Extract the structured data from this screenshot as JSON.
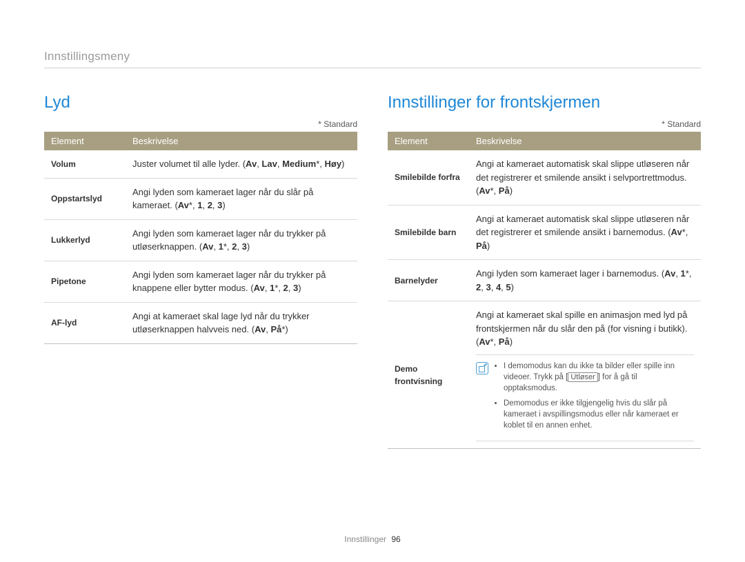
{
  "breadcrumb": "Innstillingsmeny",
  "standard_note": "* Standard",
  "table_headers": {
    "element": "Element",
    "description": "Beskrivelse"
  },
  "footer": {
    "section": "Innstillinger",
    "page": "96"
  },
  "colors": {
    "accent": "#1e87d6",
    "header_bg": "#a89f82",
    "header_text": "#ffffff",
    "breadcrumb_text": "#9a9a9a",
    "border": "#d9d9d9",
    "note_border": "#4b9ed6"
  },
  "left": {
    "title": "Lyd",
    "rows": [
      {
        "element": "Volum",
        "desc": "Juster volumet til alle lyder.",
        "opts_html": "(<b>Av</b>, <b>Lav</b>, <b>Medium</b>*, <b>Høy</b>)"
      },
      {
        "element": "Oppstartslyd",
        "desc": "Angi lyden som kameraet lager når du slår på kameraet.",
        "opts_html": "(<b>Av</b>*, <b>1</b>, <b>2</b>, <b>3</b>)"
      },
      {
        "element": "Lukkerlyd",
        "desc": "Angi lyden som kameraet lager når du trykker på utløserknappen.",
        "opts_html": "(<b>Av</b>, <b>1</b>*, <b>2</b>, <b>3</b>)"
      },
      {
        "element": "Pipetone",
        "desc": "Angi lyden som kameraet lager når du trykker på knappene eller bytter modus.",
        "opts_html": "(<b>Av</b>, <b>1</b>*, <b>2</b>, <b>3</b>)"
      },
      {
        "element": "AF-lyd",
        "desc": "Angi at kameraet skal lage lyd når du trykker utløserknappen halvveis ned.",
        "opts_html": "(<b>Av</b>, <b>På</b>*)"
      }
    ]
  },
  "right": {
    "title": "Innstillinger for frontskjermen",
    "rows": [
      {
        "element": "Smilebilde forfra",
        "desc": "Angi at kameraet automatisk skal slippe utløseren når det registrerer et smilende ansikt i selvportrettmodus.",
        "opts_html": "(<b>Av</b>*, <b>På</b>)"
      },
      {
        "element": "Smilebilde barn",
        "desc": "Angi at kameraet automatisk skal slippe utløseren når det registrerer et smilende ansikt i barnemodus.",
        "opts_html": "(<b>Av</b>*, <b>På</b>)"
      },
      {
        "element": "Barnelyder",
        "desc": "Angi lyden som kameraet lager i barnemodus.",
        "opts_html": "(<b>Av</b>, <b>1</b>*, <b>2</b>, <b>3</b>, <b>4</b>, <b>5</b>)"
      },
      {
        "element": "Demo frontvisning",
        "desc": "Angi at kameraet skal spille en animasjon med lyd på frontskjermen når du slår den på (for visning i butikk).",
        "opts_html": "(<b>Av</b>*, <b>På</b>)",
        "notes": [
          "I demomodus kan du ikke ta bilder eller spille inn videoer. Trykk på [<span class=\"outlined\">Utløser</span>] for å gå til opptaksmodus.",
          "Demomodus er ikke tilgjengelig hvis du slår på kameraet i avspillingsmodus eller når kameraet er koblet til en annen enhet."
        ]
      }
    ]
  }
}
